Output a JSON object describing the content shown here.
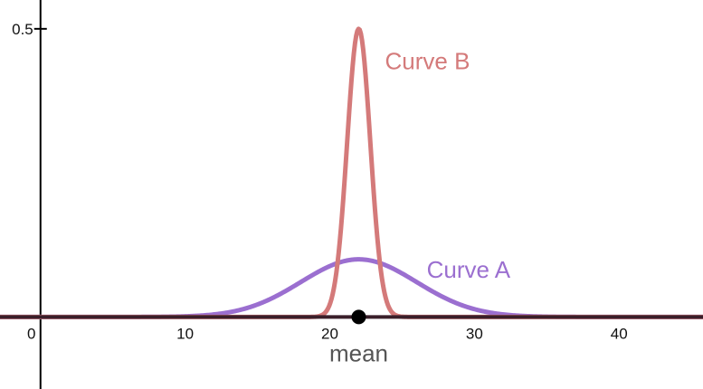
{
  "chart_data": {
    "type": "line",
    "xlim": [
      -2.8,
      45.8
    ],
    "ylim": [
      -0.125,
      0.55
    ],
    "x_ticks": [
      0,
      10,
      20,
      30,
      40
    ],
    "x_tick_labels": [
      "0",
      "10",
      "20",
      "30",
      "40"
    ],
    "y_ticks": [
      0.5
    ],
    "y_tick_labels": [
      "0.5"
    ],
    "grid": false,
    "series": [
      {
        "name": "Curve A",
        "distribution": "normal",
        "mean": 22,
        "sd": 4,
        "peak": 0.1,
        "color": "#9b6fd0"
      },
      {
        "name": "Curve B",
        "distribution": "normal",
        "mean": 22,
        "sd": 0.8,
        "peak": 0.5,
        "color": "#d47a7a"
      }
    ],
    "annotations": [
      {
        "text": "mean",
        "x": 22,
        "marker": "point"
      }
    ]
  }
}
